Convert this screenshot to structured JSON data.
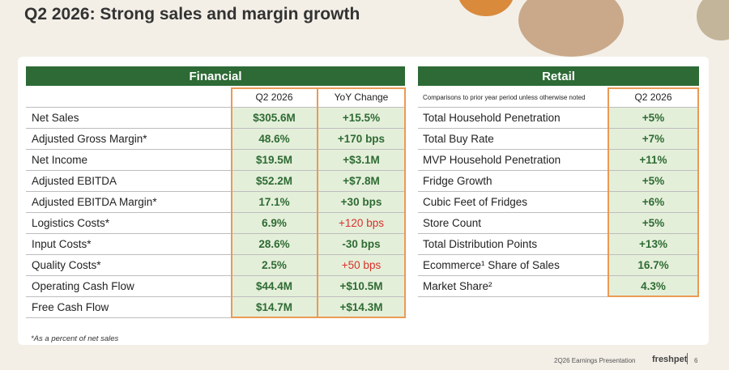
{
  "title": "Q2 2026: Strong sales and margin growth",
  "financial": {
    "header": "Financial",
    "columns": [
      "Q2 2026",
      "YoY Change"
    ],
    "rows": [
      {
        "label": "Net Sales",
        "q2": "$305.6M",
        "yoy": "+15.5%",
        "yoy_color": "#2e6b33"
      },
      {
        "label": "Adjusted Gross Margin*",
        "q2": "48.6%",
        "yoy": "+170 bps",
        "yoy_color": "#2e6b33"
      },
      {
        "label": "Net Income",
        "q2": "$19.5M",
        "yoy": "+$3.1M",
        "yoy_color": "#2e6b33"
      },
      {
        "label": "Adjusted EBITDA",
        "q2": "$52.2M",
        "yoy": "+$7.8M",
        "yoy_color": "#2e6b33"
      },
      {
        "label": "Adjusted EBITDA Margin*",
        "q2": "17.1%",
        "yoy": "+30 bps",
        "yoy_color": "#2e6b33"
      },
      {
        "label": "Logistics Costs*",
        "q2": "6.9%",
        "yoy": "+120 bps",
        "yoy_color": "#d9302a"
      },
      {
        "label": "Input Costs*",
        "q2": "28.6%",
        "yoy": "-30 bps",
        "yoy_color": "#2e6b33"
      },
      {
        "label": "Quality Costs*",
        "q2": "2.5%",
        "yoy": "+50 bps",
        "yoy_color": "#d9302a"
      },
      {
        "label": "Operating Cash Flow",
        "q2": "$44.4M",
        "yoy": "+$10.5M",
        "yoy_color": "#2e6b33"
      },
      {
        "label": "Free Cash Flow",
        "q2": "$14.7M",
        "yoy": "+$14.3M",
        "yoy_color": "#2e6b33"
      }
    ]
  },
  "retail": {
    "header": "Retail",
    "note": "Comparisons to prior year period unless otherwise noted",
    "column": "Q2 2026",
    "rows": [
      {
        "label": "Total Household Penetration",
        "q2": "+5%"
      },
      {
        "label": "Total Buy Rate",
        "q2": "+7%"
      },
      {
        "label": "MVP Household Penetration",
        "q2": "+11%"
      },
      {
        "label": "Fridge Growth",
        "q2": "+5%"
      },
      {
        "label": "Cubic Feet of Fridges",
        "q2": "+6%"
      },
      {
        "label": "Store Count",
        "q2": "+5%"
      },
      {
        "label": "Total Distribution Points",
        "q2": "+13%"
      },
      {
        "label": "Ecommerce¹ Share of Sales",
        "q2": "16.7%"
      },
      {
        "label": "Market Share²",
        "q2": "4.3%"
      }
    ]
  },
  "footnote": "*As a percent of net sales",
  "footer": {
    "text": "2Q26 Earnings Presentation",
    "brand": "freshpet",
    "page": "6"
  }
}
